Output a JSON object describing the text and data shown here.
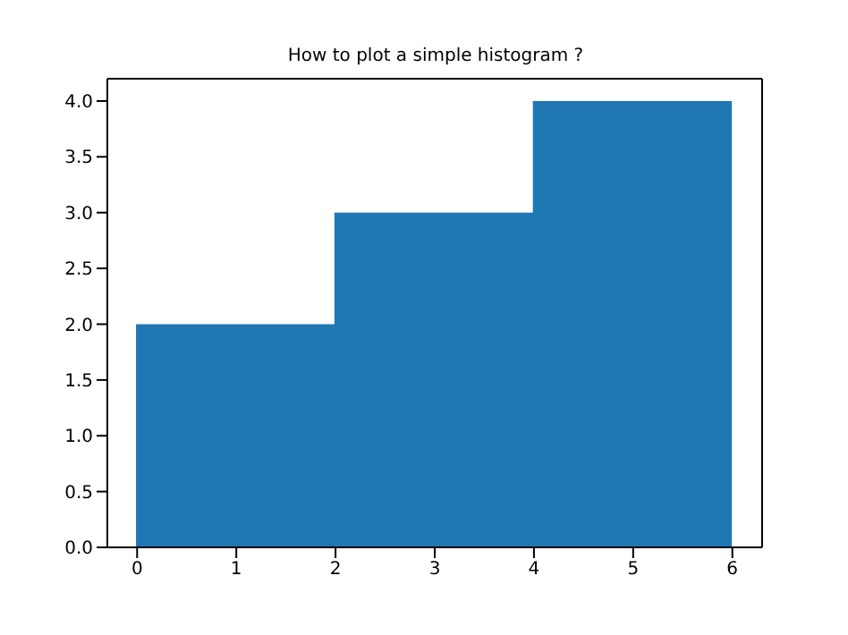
{
  "chart_data": {
    "type": "histogram",
    "title": "How to plot a simple histogram ?",
    "bins": [
      0,
      2,
      4,
      6
    ],
    "values": [
      2,
      3,
      4
    ],
    "color": "#1f77b4",
    "xlim": [
      -0.3,
      6.3
    ],
    "xticks": [
      0,
      1,
      2,
      3,
      4,
      5,
      6
    ],
    "ylim": [
      0,
      4.2
    ],
    "yticks": [
      {
        "value": 0,
        "label": "0.0"
      },
      {
        "value": 0.5,
        "label": "0.5"
      },
      {
        "value": 1,
        "label": "1.0"
      },
      {
        "value": 1.5,
        "label": "1.5"
      },
      {
        "value": 2,
        "label": "2.0"
      },
      {
        "value": 2.5,
        "label": "2.5"
      },
      {
        "value": 3,
        "label": "3.0"
      },
      {
        "value": 3.5,
        "label": "3.5"
      },
      {
        "value": 4,
        "label": "4.0"
      }
    ],
    "grid": false
  }
}
